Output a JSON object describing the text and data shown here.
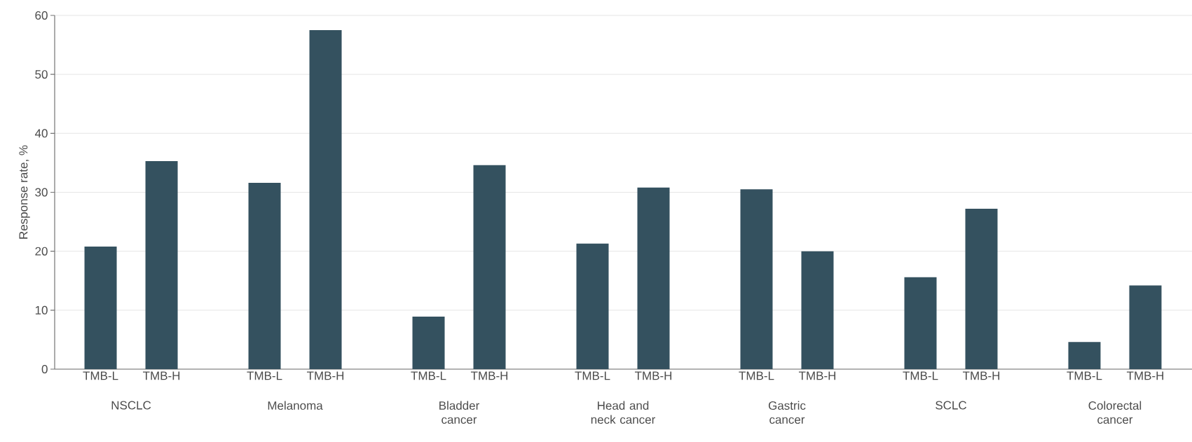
{
  "chart_data": {
    "type": "bar",
    "ylabel": "Response rate, %",
    "categories": [
      "NSCLC",
      "Melanoma",
      "Bladder cancer",
      "Head and neck cancer",
      "Gastric cancer",
      "SCLC",
      "Colorectal cancer"
    ],
    "series": [
      {
        "name": "TMB-L",
        "color": "#34515f",
        "values": [
          20.8,
          31.6,
          8.9,
          21.3,
          30.5,
          15.6,
          4.6
        ]
      },
      {
        "name": "TMB-H",
        "color": "#34515f",
        "values": [
          35.3,
          57.5,
          34.6,
          30.8,
          20.0,
          27.2,
          14.2
        ]
      }
    ],
    "ylim": [
      0,
      60
    ],
    "yticks": [
      0,
      10,
      20,
      30,
      40,
      50,
      60
    ],
    "grid": "y"
  }
}
